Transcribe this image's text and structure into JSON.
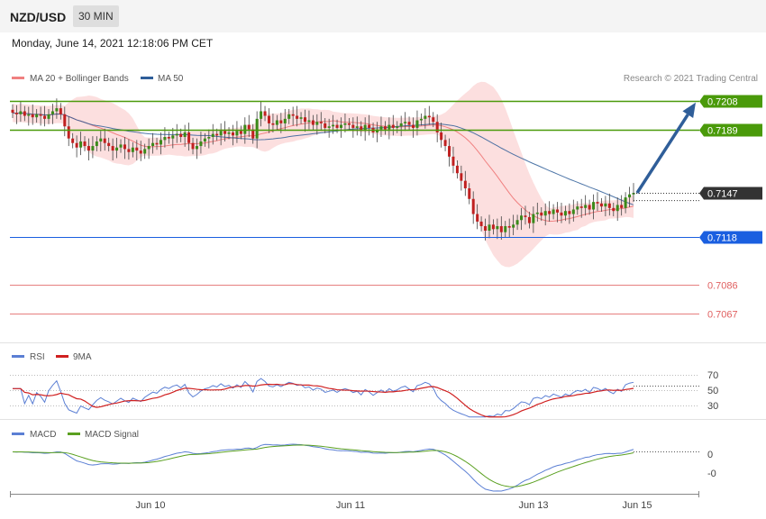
{
  "header": {
    "symbol": "NZD/USD",
    "timeframe": "30 MIN",
    "datetime": "Monday, June 14, 2021 12:18:06 PM CET"
  },
  "legend": {
    "ma20_label": "MA 20 + Bollinger Bands",
    "ma50_label": "MA 50",
    "copyright": "Research © 2021 Trading Central",
    "rsi_label": "RSI",
    "rsi_ma_label": "9MA",
    "macd_label": "MACD",
    "macd_signal_label": "MACD Signal"
  },
  "colors": {
    "resistance": "#4a9a0a",
    "pivot": "#1a5fe0",
    "support": "#e06060",
    "last_price": "#333333",
    "ma20": "#f08080",
    "ma50": "#2f5e99",
    "candle_up": "#3a8a1a",
    "candle_down": "#c02020",
    "arrow": "#2f5e99",
    "rsi": "#5b7fd4",
    "rsi_ma": "#d02020",
    "macd": "#5b7fd4",
    "macd_signal": "#5aa020"
  },
  "chart_data": [
    {
      "type": "candlestick",
      "title": "NZD/USD",
      "timeframe": "30 MIN",
      "x_ticks": [
        "Jun 10",
        "Jun 11",
        "Jun 13",
        "Jun 15"
      ],
      "ylim": [
        0.706,
        0.7215
      ],
      "levels": [
        {
          "value": 0.7208,
          "kind": "resistance",
          "label": "0.7208"
        },
        {
          "value": 0.7189,
          "kind": "resistance",
          "label": "0.7189"
        },
        {
          "value": 0.7147,
          "kind": "last",
          "label": "0.7147"
        },
        {
          "value": 0.7118,
          "kind": "pivot",
          "label": "0.7118"
        },
        {
          "value": 0.7086,
          "kind": "support",
          "label": "0.7086"
        },
        {
          "value": 0.7067,
          "kind": "support",
          "label": "0.7067"
        }
      ],
      "forecast_arrow": {
        "from": 0.7147,
        "to": 0.7208
      },
      "close_series": [
        0.72,
        0.7199,
        0.7201,
        0.7198,
        0.7199,
        0.7197,
        0.7199,
        0.7198,
        0.7196,
        0.7199,
        0.7201,
        0.7203,
        0.7199,
        0.7191,
        0.7183,
        0.718,
        0.7177,
        0.7181,
        0.7178,
        0.7175,
        0.7178,
        0.7181,
        0.7183,
        0.718,
        0.7178,
        0.7175,
        0.7177,
        0.7179,
        0.7176,
        0.7174,
        0.7177,
        0.7175,
        0.7173,
        0.7176,
        0.7178,
        0.718,
        0.7179,
        0.7182,
        0.7184,
        0.7183,
        0.7185,
        0.7186,
        0.7184,
        0.7187,
        0.718,
        0.7176,
        0.7178,
        0.7181,
        0.7183,
        0.7184,
        0.7186,
        0.7185,
        0.7188,
        0.7186,
        0.7187,
        0.7185,
        0.7188,
        0.7186,
        0.7192,
        0.7189,
        0.7183,
        0.7196,
        0.7201,
        0.7198,
        0.7193,
        0.7192,
        0.7195,
        0.7193,
        0.7196,
        0.7199,
        0.7198,
        0.7196,
        0.7197,
        0.7194,
        0.7195,
        0.7192,
        0.7194,
        0.7193,
        0.719,
        0.7191,
        0.7192,
        0.719,
        0.7192,
        0.7193,
        0.7192,
        0.719,
        0.7191,
        0.7188,
        0.7192,
        0.719,
        0.7187,
        0.7189,
        0.7191,
        0.7189,
        0.7192,
        0.719,
        0.7191,
        0.7193,
        0.7194,
        0.7192,
        0.719,
        0.7195,
        0.7196,
        0.7198,
        0.7197,
        0.7194,
        0.7187,
        0.7182,
        0.7178,
        0.7171,
        0.7165,
        0.716,
        0.7155,
        0.715,
        0.7143,
        0.7133,
        0.7128,
        0.7125,
        0.7122,
        0.7126,
        0.7123,
        0.7125,
        0.7121,
        0.7125,
        0.7124,
        0.7126,
        0.7129,
        0.7132,
        0.7131,
        0.7127,
        0.7133,
        0.7134,
        0.7132,
        0.7135,
        0.7133,
        0.7136,
        0.7134,
        0.7132,
        0.7135,
        0.7133,
        0.7136,
        0.7138,
        0.7137,
        0.7139,
        0.7136,
        0.7141,
        0.714,
        0.7138,
        0.714,
        0.7137,
        0.7135,
        0.7139,
        0.7137,
        0.7144,
        0.7146,
        0.7147
      ]
    },
    {
      "type": "line",
      "title": "RSI",
      "series": [
        {
          "name": "RSI"
        },
        {
          "name": "9MA"
        }
      ],
      "y_ticks": [
        70,
        50,
        30
      ],
      "ylim": [
        15,
        85
      ]
    },
    {
      "type": "line",
      "title": "MACD",
      "series": [
        {
          "name": "MACD"
        },
        {
          "name": "MACD Signal"
        }
      ],
      "y_ticks": [
        "0",
        "-0"
      ]
    }
  ]
}
